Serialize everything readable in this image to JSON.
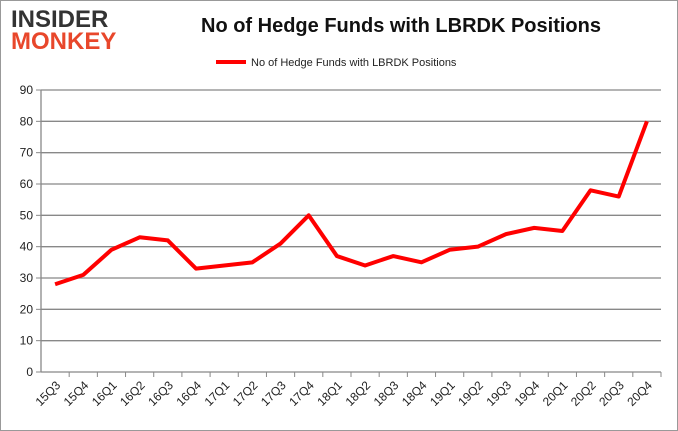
{
  "logo": {
    "line1": "INSIDER",
    "line2": "MONKEY"
  },
  "chart_data": {
    "type": "line",
    "title": "No of Hedge Funds with LBRDK Positions",
    "categories": [
      "15Q3",
      "15Q4",
      "16Q1",
      "16Q2",
      "16Q3",
      "16Q4",
      "17Q1",
      "17Q2",
      "17Q3",
      "17Q4",
      "18Q1",
      "18Q2",
      "18Q3",
      "18Q4",
      "19Q1",
      "19Q2",
      "19Q3",
      "19Q4",
      "20Q1",
      "20Q2",
      "20Q3",
      "20Q4"
    ],
    "series": [
      {
        "name": "No of Hedge Funds with LBRDK Positions",
        "color": "#ff0000",
        "values": [
          28,
          31,
          39,
          43,
          42,
          33,
          34,
          35,
          41,
          50,
          37,
          34,
          37,
          35,
          39,
          40,
          44,
          46,
          45,
          58,
          56,
          80
        ]
      }
    ],
    "ylim": [
      0,
      90
    ],
    "yticks": [
      0,
      10,
      20,
      30,
      40,
      50,
      60,
      70,
      80,
      90
    ],
    "grid": true,
    "legend": "top-center"
  }
}
